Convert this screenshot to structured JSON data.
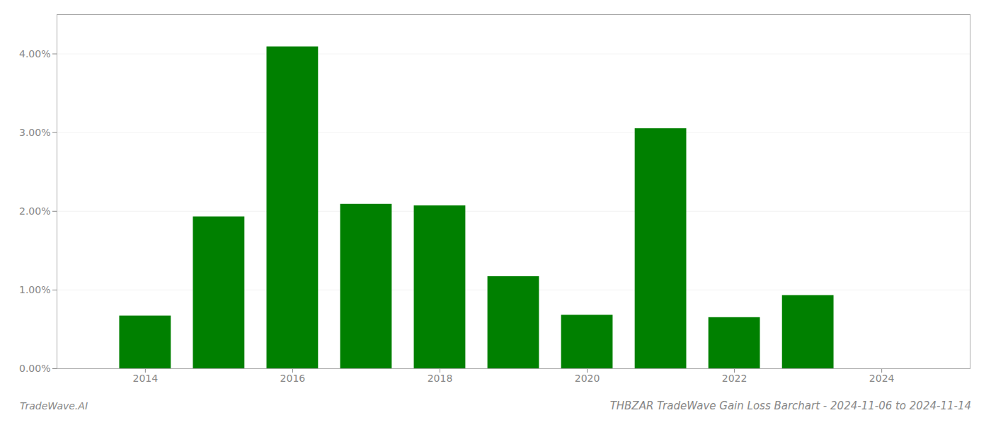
{
  "chart_data": {
    "type": "bar",
    "title": "THBZAR TradeWave Gain Loss Barchart - 2024-11-06 to 2024-11-14",
    "annotations": [
      "TradeWave.AI"
    ],
    "x": [
      2014,
      2015,
      2016,
      2017,
      2018,
      2019,
      2020,
      2021,
      2022,
      2023,
      2024
    ],
    "values": [
      0.0067,
      0.0193,
      0.0409,
      0.0209,
      0.0207,
      0.0117,
      0.0068,
      0.0305,
      0.0065,
      0.0093,
      0.0
    ],
    "color": "#008000",
    "xlim": [
      2012.8,
      2025.2
    ],
    "xticks": [
      2014,
      2016,
      2018,
      2020,
      2022,
      2024
    ],
    "ylim": [
      0,
      0.045
    ],
    "yticks": [
      {
        "value": 0.0,
        "label": "0.00%"
      },
      {
        "value": 0.01,
        "label": "1.00%"
      },
      {
        "value": 0.02,
        "label": "2.00%"
      },
      {
        "value": 0.03,
        "label": "3.00%"
      },
      {
        "value": 0.04,
        "label": "4.00%"
      }
    ],
    "grid": true
  }
}
